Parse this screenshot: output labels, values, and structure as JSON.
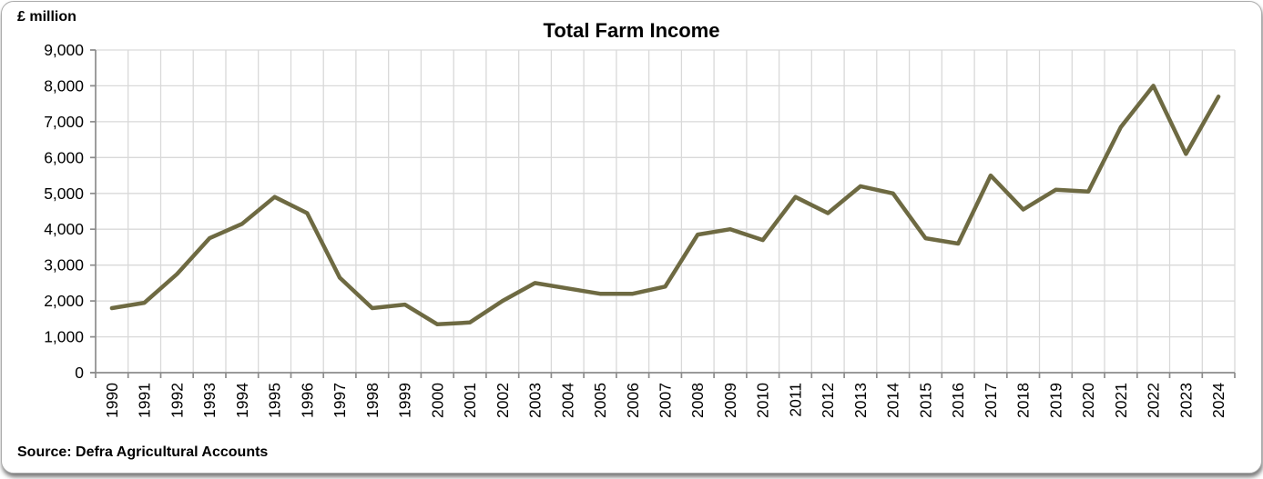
{
  "chart": {
    "units_label": "£ million",
    "title": "Total Farm Income",
    "source_note": "Source: Defra Agricultural Accounts"
  },
  "chart_data": {
    "type": "line",
    "title": "Total Farm Income",
    "xlabel": "",
    "ylabel": "£ million",
    "source": "Source: Defra Agricultural Accounts",
    "categories": [
      1990,
      1991,
      1992,
      1993,
      1994,
      1995,
      1996,
      1997,
      1998,
      1999,
      2000,
      2001,
      2002,
      2003,
      2004,
      2005,
      2006,
      2007,
      2008,
      2009,
      2010,
      2011,
      2012,
      2013,
      2014,
      2015,
      2016,
      2017,
      2018,
      2019,
      2020,
      2021,
      2022,
      2023,
      2024
    ],
    "series": [
      {
        "name": "Total Farm Income",
        "values": [
          1800,
          1950,
          2750,
          3750,
          4150,
          4900,
          4450,
          2650,
          1800,
          1900,
          1350,
          1400,
          2000,
          2500,
          2350,
          2200,
          2200,
          2400,
          3850,
          4000,
          3700,
          4900,
          4450,
          5200,
          5000,
          3750,
          3600,
          5500,
          4550,
          5100,
          5050,
          6850,
          8000,
          6100,
          7700
        ]
      }
    ],
    "ylim": [
      0,
      9000
    ],
    "ytick_step": 1000,
    "grid": true,
    "legend_position": "none",
    "line_color": "#6E6A42",
    "gridline_color": "#D9D9D9",
    "axis_color": "#8C8C8C",
    "text_color": "#000000"
  }
}
